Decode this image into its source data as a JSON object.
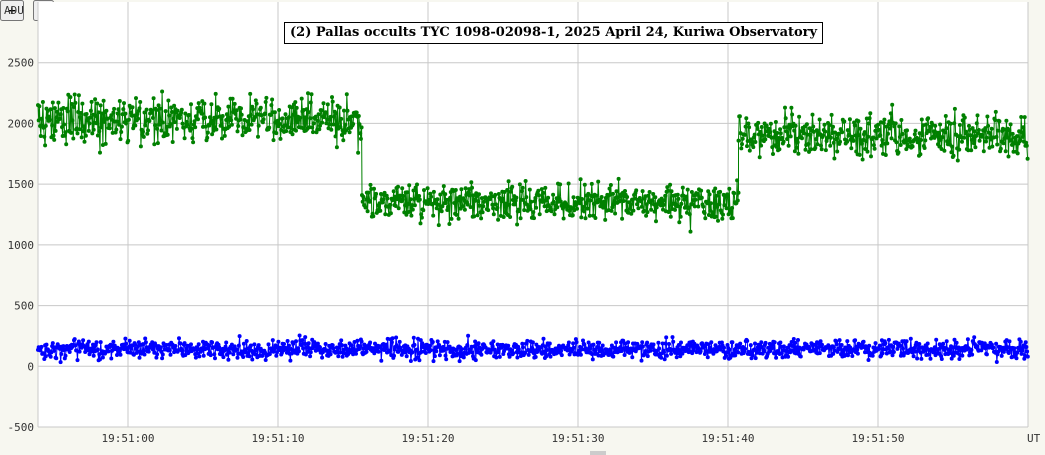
{
  "controls": {
    "zoom_in": "+",
    "zoom_out": "-"
  },
  "chart_data": {
    "type": "line",
    "title": "(2) Pallas occults TYC 1098-02098-1, 2025 April 24, Kuriwa Observatory",
    "ylabel": "ADU",
    "xlabel": "UT",
    "ylim": [
      -500,
      3000
    ],
    "yticks": [
      -500,
      0,
      500,
      1000,
      1500,
      2000,
      2500
    ],
    "xlim": [
      "19:50:54",
      "19:52:00"
    ],
    "xticks": [
      "19:51:00",
      "19:51:10",
      "19:51:20",
      "19:51:30",
      "19:51:40",
      "19:51:50"
    ],
    "grid": true,
    "series": [
      {
        "color": "#008000",
        "segments": [
          {
            "from": "19:50:54",
            "to": "19:51:15.6",
            "mean": 2030,
            "spread": 160
          },
          {
            "from": "19:51:15.6",
            "to": "19:51:40.7",
            "mean": 1350,
            "spread": 130
          },
          {
            "from": "19:51:40.7",
            "to": "19:52:00",
            "mean": 1900,
            "spread": 140
          }
        ]
      },
      {
        "color": "#0000ff",
        "segments": [
          {
            "from": "19:50:54",
            "to": "19:52:00",
            "mean": 140,
            "spread": 65
          }
        ]
      }
    ]
  }
}
